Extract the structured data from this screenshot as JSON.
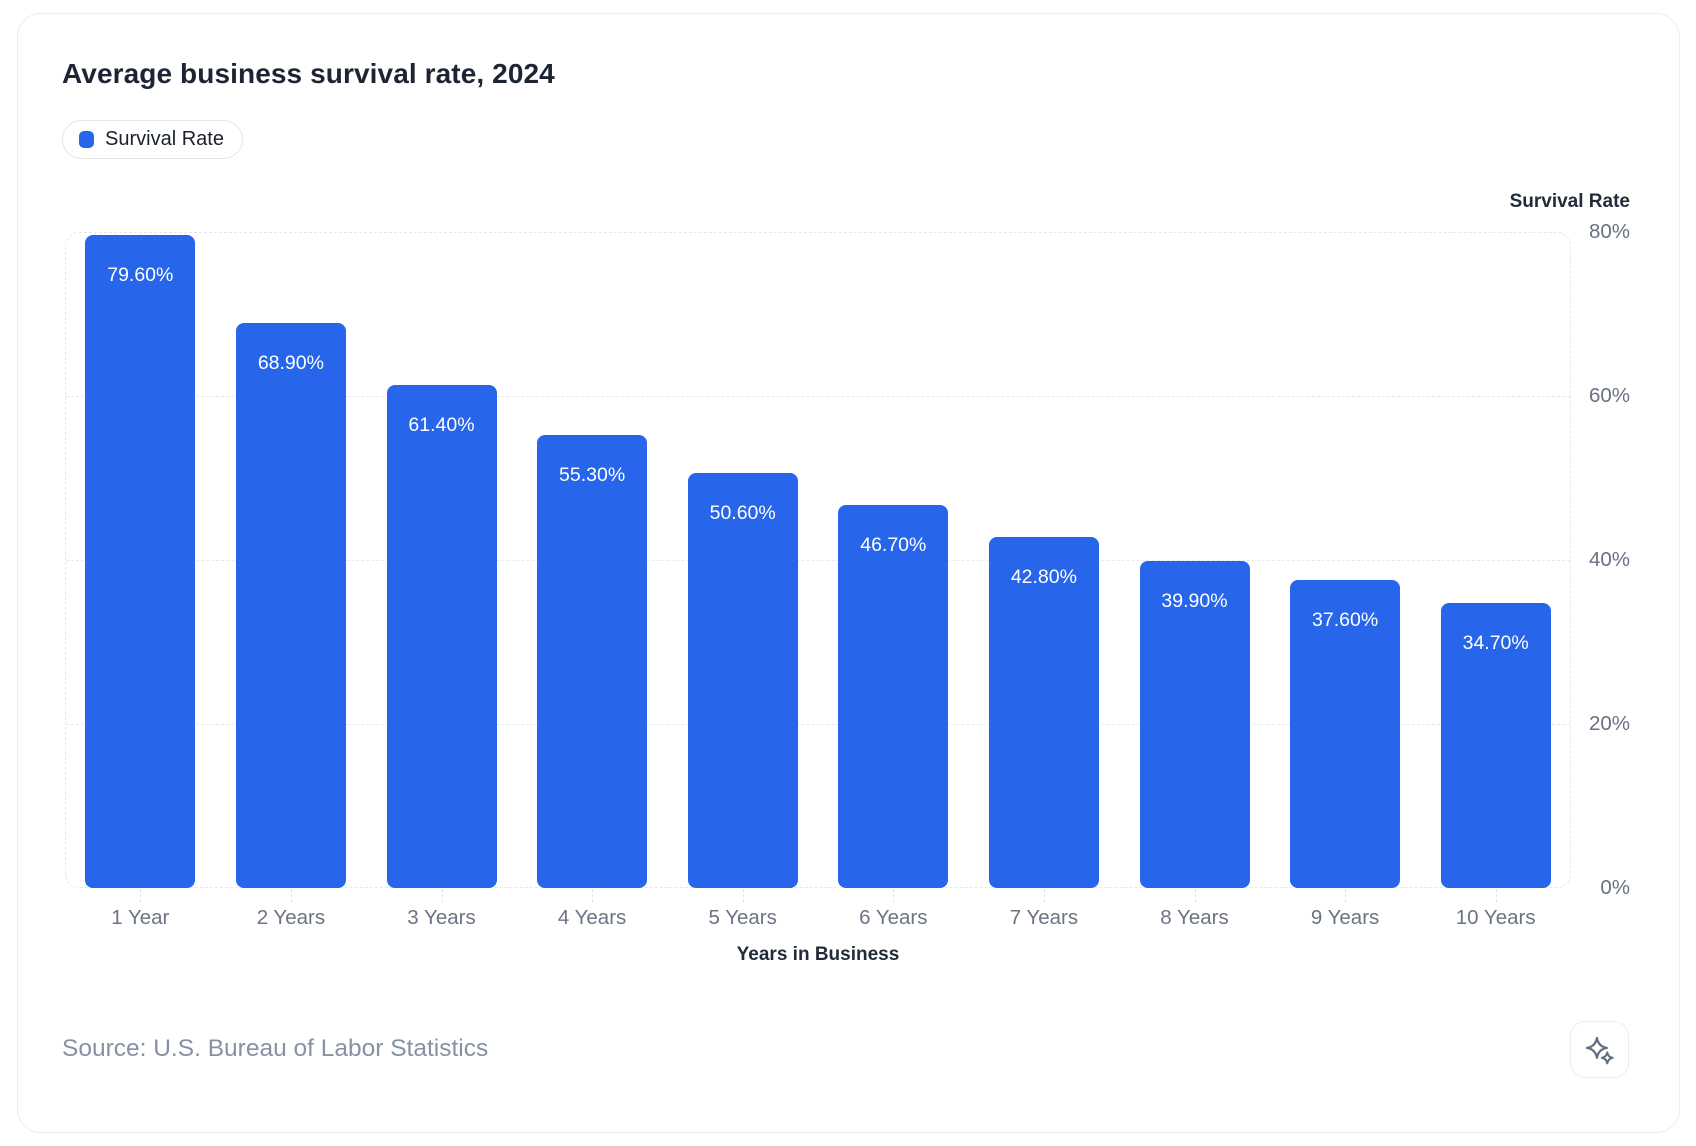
{
  "header": {
    "title": "Average business survival rate, 2024"
  },
  "legend": {
    "items": [
      {
        "label": "Survival Rate",
        "color": "#2765EB"
      }
    ]
  },
  "chart_data": {
    "type": "bar",
    "title": "Average business survival rate, 2024",
    "categories": [
      "1 Year",
      "2 Years",
      "3 Years",
      "4 Years",
      "5 Years",
      "6 Years",
      "7 Years",
      "8 Years",
      "9 Years",
      "10 Years"
    ],
    "series": [
      {
        "name": "Survival Rate",
        "values": [
          79.6,
          68.9,
          61.4,
          55.3,
          50.6,
          46.7,
          42.8,
          39.9,
          37.6,
          34.7
        ],
        "value_labels": [
          "79.60%",
          "68.90%",
          "61.40%",
          "55.30%",
          "50.60%",
          "46.70%",
          "42.80%",
          "39.90%",
          "37.60%",
          "34.70%"
        ]
      }
    ],
    "xlabel": "Years in Business",
    "ylabel": "Survival Rate",
    "ylim": [
      0,
      80
    ],
    "y_ticks": [
      {
        "value": 80,
        "label": "80%"
      },
      {
        "value": 60,
        "label": "60%"
      },
      {
        "value": 40,
        "label": "40%"
      },
      {
        "value": 20,
        "label": "20%"
      },
      {
        "value": 0,
        "label": "0%"
      }
    ],
    "grid": "horizontal-dashed",
    "legend_position": "top-left",
    "bar_color": "#2765EB",
    "value_label_color": "#ffffff"
  },
  "footer": {
    "source": "Source: U.S. Bureau of Labor Statistics",
    "action_icon": "sparkles-icon"
  }
}
